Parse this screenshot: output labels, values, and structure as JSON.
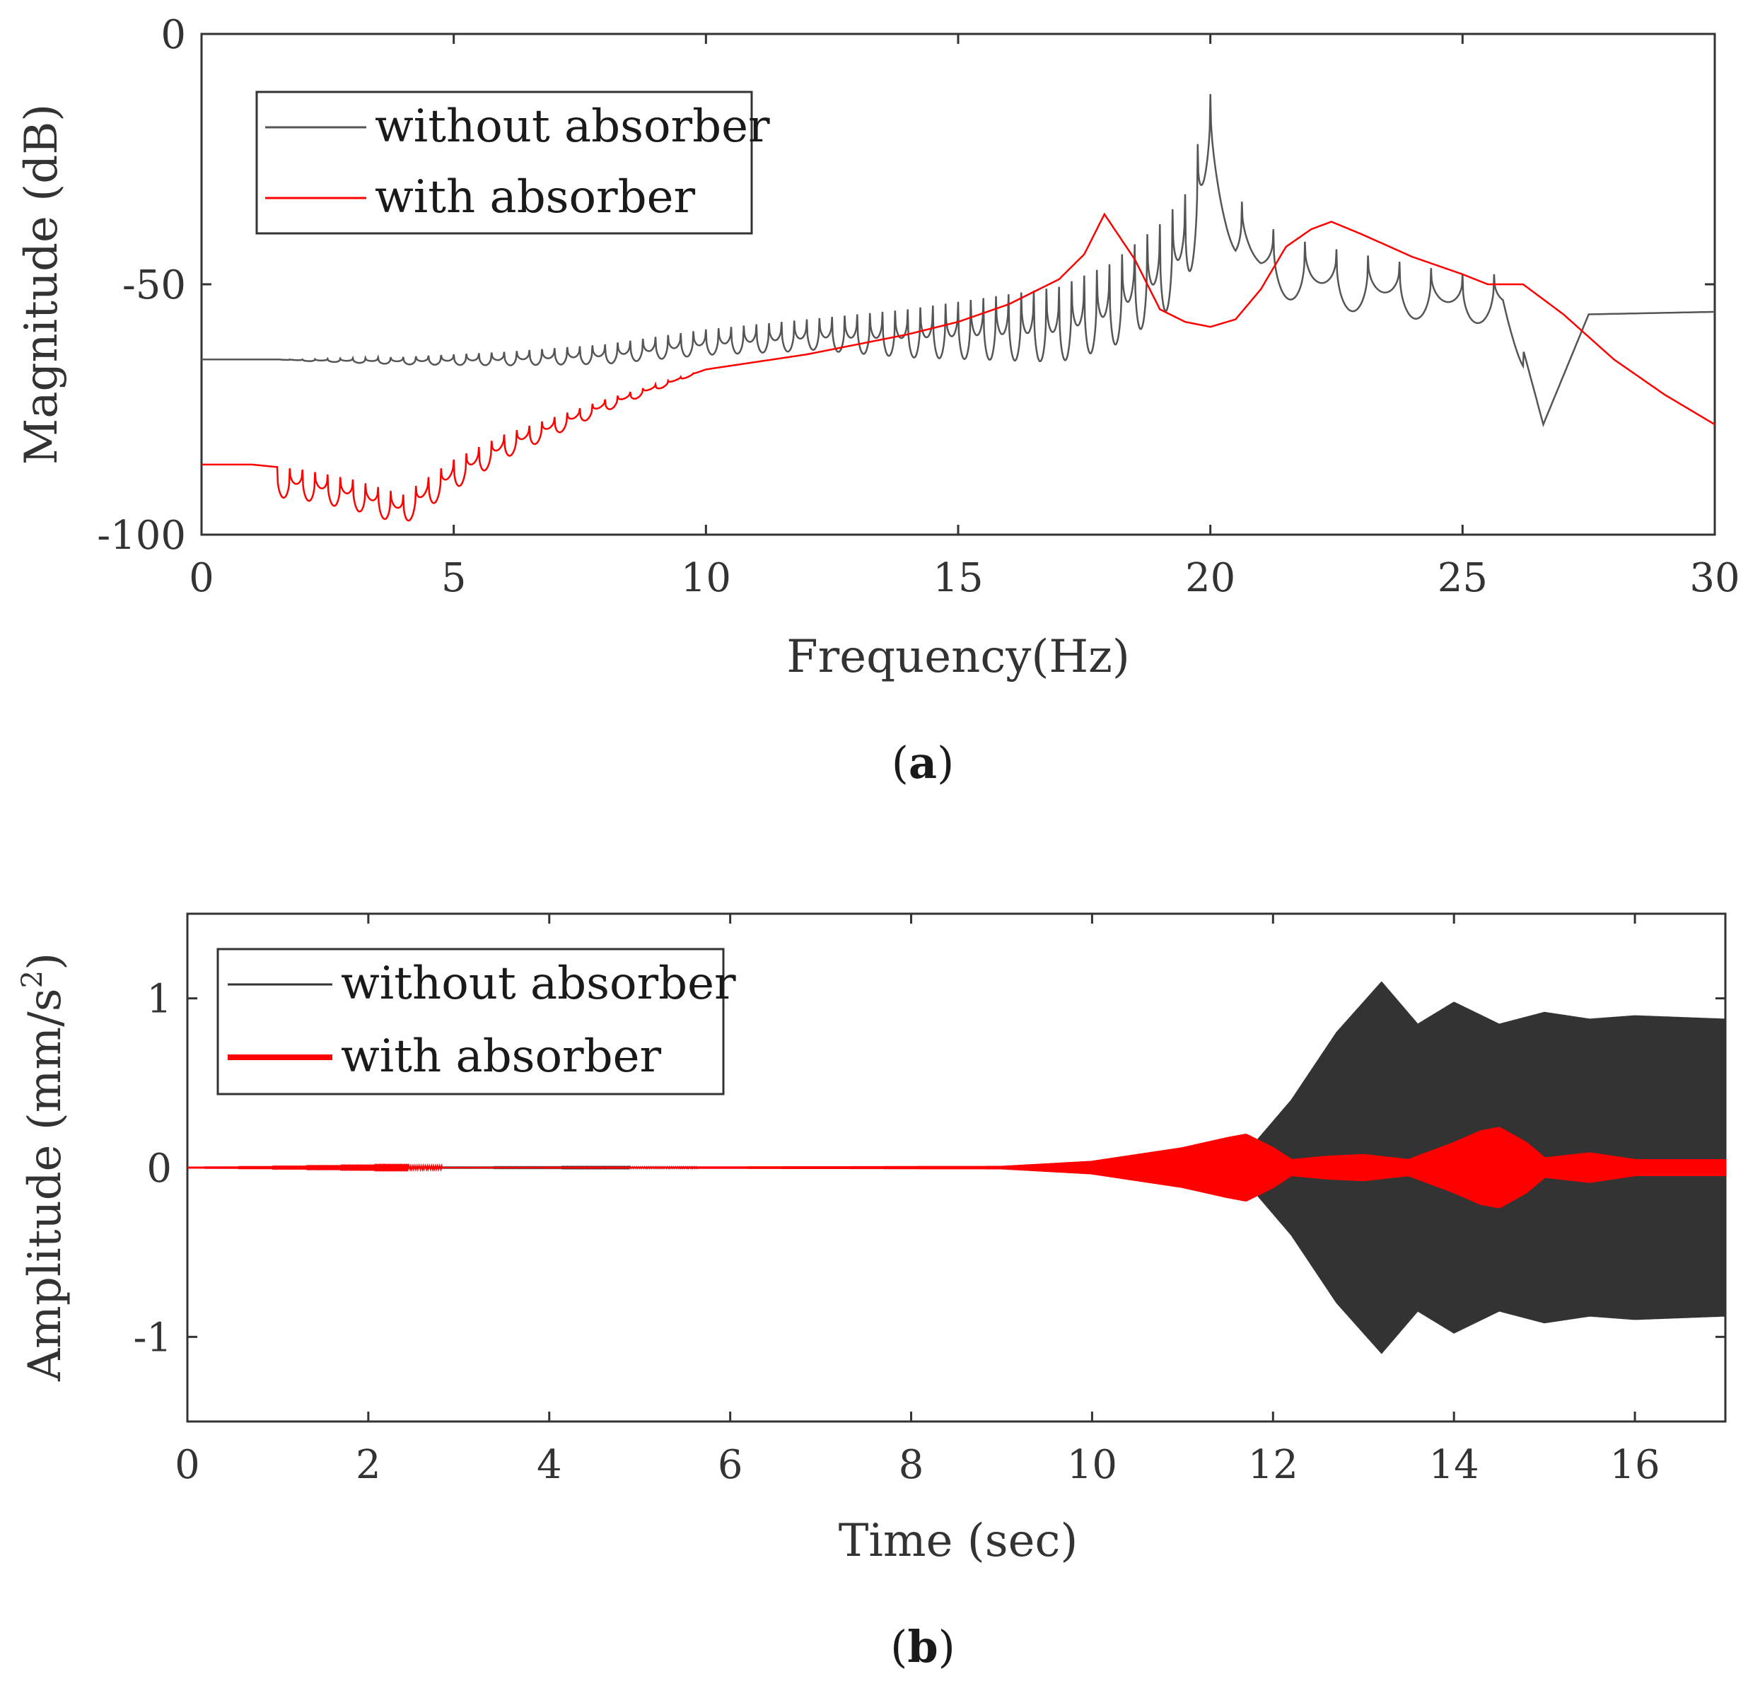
{
  "chart_data": [
    {
      "type": "line",
      "caption": "a",
      "xlabel": "Frequency(Hz)",
      "ylabel": "Magnitude (dB)",
      "xlim": [
        0,
        30
      ],
      "ylim": [
        -100,
        0
      ],
      "xticks": [
        "0",
        "5",
        "10",
        "15",
        "20",
        "25",
        "30"
      ],
      "yticks": [
        "0",
        "-50",
        "-100"
      ],
      "legend_position": "top-left",
      "series": [
        {
          "name": "without absorber",
          "color": "#555555",
          "x": [
            0,
            2,
            4,
            6,
            8,
            10,
            12,
            14,
            16,
            17,
            18,
            19,
            19.5,
            20,
            20.5,
            21,
            22,
            23,
            24,
            25,
            25.8,
            26.6,
            27.5,
            30
          ],
          "y": [
            -65,
            -65,
            -64.5,
            -63.5,
            -62,
            -59,
            -57,
            -55,
            -52,
            -50.5,
            -46,
            -38,
            -32,
            -12,
            -32,
            -38,
            -42,
            -44,
            -46,
            -48,
            -48,
            -78,
            -56,
            -55.5
          ]
        },
        {
          "name": "with absorber",
          "color": "#ff0000",
          "x": [
            0,
            1,
            2,
            3,
            4,
            5,
            6,
            8,
            10,
            12,
            14,
            15,
            16,
            17,
            17.5,
            17.9,
            18.5,
            19,
            19.5,
            20,
            20.5,
            21,
            21.5,
            22,
            22.4,
            23,
            24,
            25,
            25.5,
            26.2,
            27,
            28,
            29,
            30
          ],
          "y": [
            -86,
            -86,
            -87,
            -89,
            -92,
            -85,
            -80,
            -73,
            -67,
            -64,
            -60,
            -57.5,
            -54,
            -49,
            -44,
            -36,
            -45,
            -55,
            -57.5,
            -58.5,
            -57,
            -51,
            -42.5,
            -39,
            -37.5,
            -40,
            -44.5,
            -48,
            -50,
            -50,
            -56,
            -65,
            -72,
            -78
          ]
        }
      ]
    },
    {
      "type": "line",
      "caption": "b",
      "xlabel": "Time (sec)",
      "ylabel_main": "Amplitude (mm/s",
      "ylabel_sup": "2",
      "ylabel_end": ")",
      "xlim": [
        0,
        17
      ],
      "ylim": [
        -1.5,
        1.5
      ],
      "xticks": [
        "0",
        "2",
        "4",
        "6",
        "8",
        "10",
        "12",
        "14",
        "16"
      ],
      "yticks": [
        "1",
        "0",
        "-1"
      ],
      "legend_position": "top-left",
      "series": [
        {
          "name": "without absorber",
          "color": "#333333",
          "envelope_t": [
            0,
            9,
            10,
            11,
            11.8,
            12.2,
            12.7,
            13.2,
            13.6,
            14,
            14.5,
            15,
            15.5,
            16,
            17
          ],
          "envelope_a": [
            0,
            0.005,
            0.02,
            0.08,
            0.15,
            0.4,
            0.8,
            1.1,
            0.85,
            0.98,
            0.85,
            0.92,
            0.88,
            0.9,
            0.88
          ]
        },
        {
          "name": "with absorber",
          "color": "#ff0000",
          "envelope_t": [
            0,
            9,
            10,
            10.5,
            11,
            11.5,
            11.7,
            12,
            12.2,
            12.6,
            13,
            13.5,
            14,
            14.3,
            14.5,
            14.8,
            15,
            15.5,
            16,
            17
          ],
          "envelope_a": [
            0,
            0.01,
            0.04,
            0.08,
            0.12,
            0.18,
            0.2,
            0.12,
            0.05,
            0.07,
            0.08,
            0.05,
            0.15,
            0.22,
            0.24,
            0.15,
            0.06,
            0.09,
            0.05,
            0.05
          ]
        }
      ]
    }
  ]
}
